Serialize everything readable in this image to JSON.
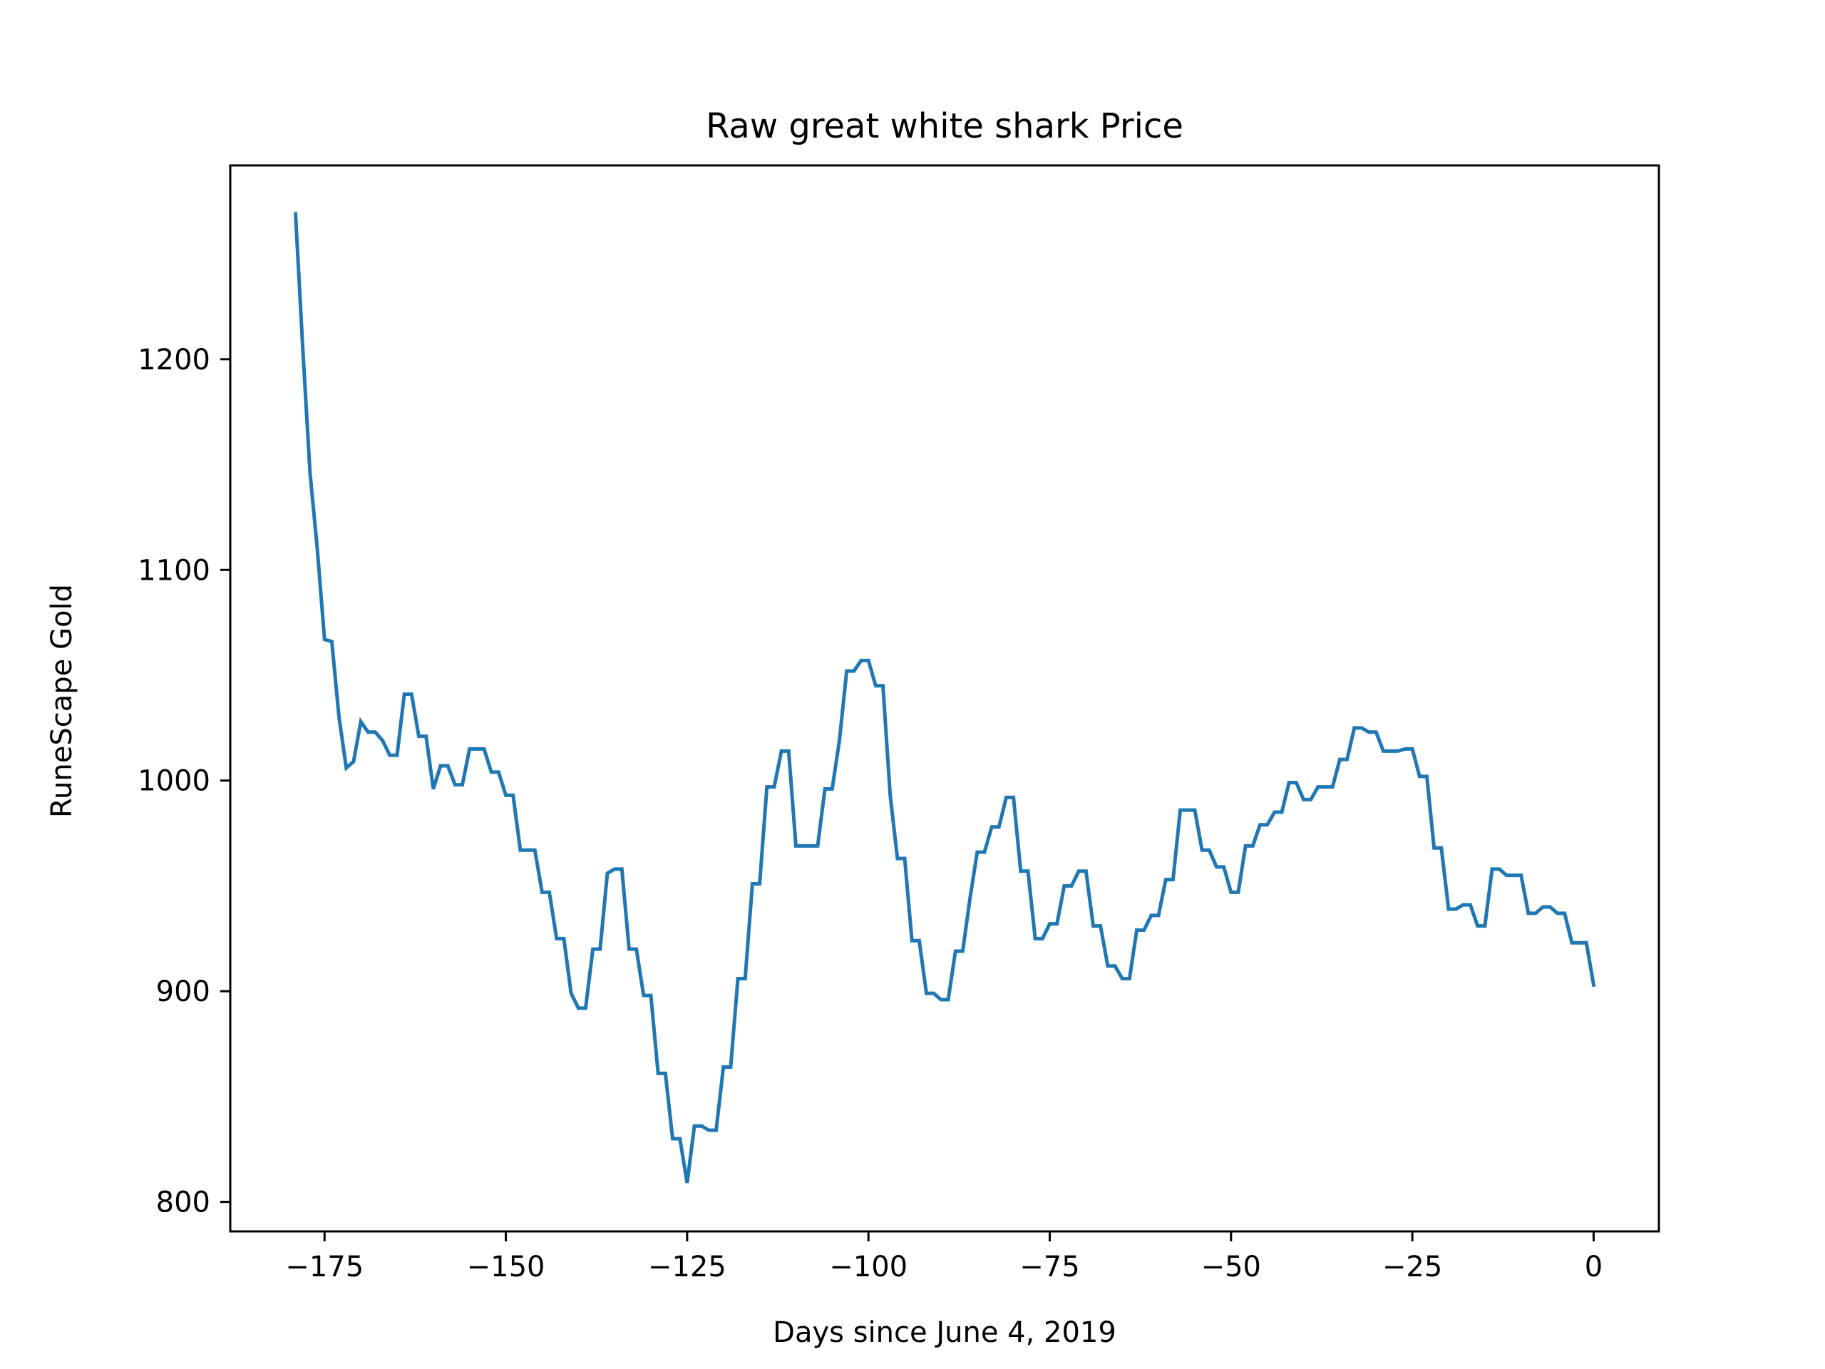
{
  "chart_data": {
    "type": "line",
    "title": "Raw great white shark Price",
    "xlabel": "Days since June 4, 2019",
    "ylabel": "RuneScape Gold",
    "xlim": [
      -188,
      9
    ],
    "ylim": [
      786,
      1292
    ],
    "xticks": [
      -175,
      -150,
      -125,
      -100,
      -75,
      -50,
      -25,
      0
    ],
    "xtick_labels": [
      "−175",
      "−150",
      "−125",
      "−100",
      "−75",
      "−50",
      "−25",
      "0"
    ],
    "yticks": [
      800,
      900,
      1000,
      1100,
      1200
    ],
    "ytick_labels": [
      "800",
      "900",
      "1000",
      "1100",
      "1200"
    ],
    "grid": false,
    "line_color": "#1f77b4",
    "series": [
      {
        "name": "",
        "x": [
          -179,
          -178,
          -177,
          -176,
          -175,
          -174,
          -173,
          -172,
          -171,
          -170,
          -169,
          -168,
          -167,
          -166,
          -165,
          -164,
          -163,
          -162,
          -161,
          -160,
          -159,
          -158,
          -157,
          -156,
          -155,
          -154,
          -153,
          -152,
          -151,
          -150,
          -149,
          -148,
          -147,
          -146,
          -145,
          -144,
          -143,
          -142,
          -141,
          -140,
          -139,
          -138,
          -137,
          -136,
          -135,
          -134,
          -133,
          -132,
          -131,
          -130,
          -129,
          -128,
          -127,
          -126,
          -125,
          -124,
          -123,
          -122,
          -121,
          -120,
          -119,
          -118,
          -117,
          -116,
          -115,
          -114,
          -113,
          -112,
          -111,
          -110,
          -109,
          -108,
          -107,
          -106,
          -105,
          -104,
          -103,
          -102,
          -101,
          -100,
          -99,
          -98,
          -97,
          -96,
          -95,
          -94,
          -93,
          -92,
          -91,
          -90,
          -89,
          -88,
          -87,
          -86,
          -85,
          -84,
          -83,
          -82,
          -81,
          -80,
          -79,
          -78,
          -77,
          -76,
          -75,
          -74,
          -73,
          -72,
          -71,
          -70,
          -69,
          -68,
          -67,
          -66,
          -65,
          -64,
          -63,
          -62,
          -61,
          -60,
          -59,
          -58,
          -57,
          -56,
          -55,
          -54,
          -53,
          -52,
          -51,
          -50,
          -49,
          -48,
          -47,
          -46,
          -45,
          -44,
          -43,
          -42,
          -41,
          -40,
          -39,
          -38,
          -37,
          -36,
          -35,
          -34,
          -33,
          -32,
          -31,
          -30,
          -29,
          -28,
          -27,
          -26,
          -25,
          -24,
          -23,
          -22,
          -21,
          -20,
          -19,
          -18,
          -17,
          -16,
          -15,
          -14,
          -13,
          -12,
          -11,
          -10,
          -9,
          -8,
          -7,
          -6,
          -5,
          -4,
          -3,
          -2,
          -1,
          0
        ],
        "y": [
          1269,
          1205,
          1146,
          1110,
          1067,
          1066,
          1030,
          1006,
          1009,
          1028,
          1023,
          1023,
          1019,
          1012,
          1012,
          1041,
          1041,
          1021,
          1021,
          996,
          1007,
          1007,
          998,
          998,
          1015,
          1015,
          1015,
          1004,
          1004,
          993,
          993,
          967,
          967,
          967,
          947,
          947,
          925,
          925,
          899,
          892,
          892,
          920,
          920,
          956,
          958,
          958,
          920,
          920,
          898,
          898,
          861,
          861,
          830,
          830,
          809,
          836,
          836,
          834,
          834,
          864,
          864,
          906,
          906,
          951,
          951,
          997,
          997,
          1014,
          1014,
          969,
          969,
          969,
          969,
          996,
          996,
          1019,
          1052,
          1052,
          1057,
          1057,
          1045,
          1045,
          993,
          963,
          963,
          924,
          924,
          899,
          899,
          896,
          896,
          919,
          919,
          944,
          966,
          966,
          978,
          978,
          992,
          992,
          957,
          957,
          925,
          925,
          932,
          932,
          950,
          950,
          957,
          957,
          931,
          931,
          912,
          912,
          906,
          906,
          929,
          929,
          936,
          936,
          953,
          953,
          986,
          986,
          986,
          967,
          967,
          959,
          959,
          947,
          947,
          969,
          969,
          979,
          979,
          985,
          985,
          999,
          999,
          991,
          991,
          997,
          997,
          997,
          1010,
          1010,
          1025,
          1025,
          1023,
          1023,
          1014,
          1014,
          1014,
          1015,
          1015,
          1002,
          1002,
          968,
          968,
          939,
          939,
          941,
          941,
          931,
          931,
          958,
          958,
          955,
          955,
          955,
          937,
          937,
          940,
          940,
          937,
          937,
          923,
          923,
          923,
          903
        ]
      }
    ]
  }
}
